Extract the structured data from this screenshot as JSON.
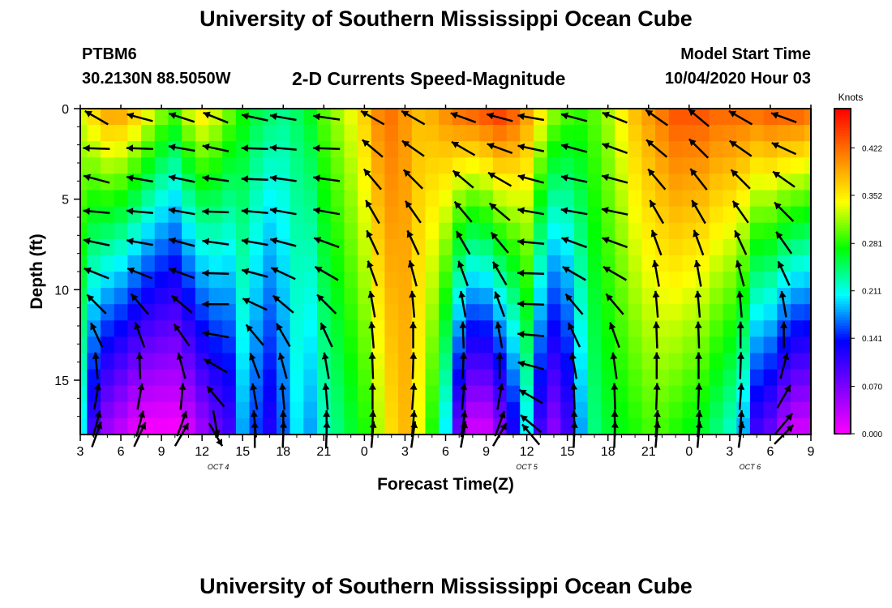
{
  "header": {
    "title": "University of Southern Mississippi Ocean Cube",
    "station": "PTBM6",
    "coords": "30.2130N 88.5050W",
    "subtitle": "2-D Currents Speed-Magnitude",
    "model_start_label": "Model Start Time",
    "model_start_value": "10/04/2020 Hour 03"
  },
  "footer": {
    "title": "University of Southern Mississippi Ocean Cube"
  },
  "chart_data": {
    "type": "heatmap",
    "xlabel": "Forecast Time(Z)",
    "ylabel": "Depth (ft)",
    "x_tick_labels": [
      "3",
      "6",
      "9",
      "12",
      "15",
      "18",
      "21",
      "0",
      "3",
      "6",
      "9",
      "12",
      "15",
      "18",
      "21",
      "0",
      "3",
      "6",
      "9"
    ],
    "x_hours": [
      0,
      3,
      6,
      9,
      12,
      15,
      18,
      21,
      24,
      27,
      30,
      33,
      36,
      39,
      42,
      45,
      48,
      51,
      54
    ],
    "date_labels": [
      {
        "label": "OCT 4",
        "hour": 10.2
      },
      {
        "label": "OCT 5",
        "hour": 33
      },
      {
        "label": "OCT 6",
        "hour": 49.5
      }
    ],
    "y_ticks": [
      0,
      5,
      10,
      15
    ],
    "ylim": [
      0,
      18
    ],
    "xlim_hours": [
      0,
      54
    ],
    "colorbar": {
      "title": "Knots",
      "ticks": [
        0.0,
        0.07,
        0.141,
        0.211,
        0.281,
        0.352,
        0.422
      ],
      "tick_labels": [
        "0.000",
        "0.070",
        "0.141",
        "0.211",
        "0.281",
        "0.352",
        "0.422"
      ],
      "range": [
        0,
        0.48
      ],
      "colors": [
        "#ff00ff",
        "#8000ff",
        "#0000ff",
        "#00ffff",
        "#00ff00",
        "#ffff00",
        "#ff8000",
        "#ff0000"
      ]
    },
    "times": [
      0,
      1,
      2,
      3,
      4,
      5,
      6,
      7,
      8,
      9,
      10,
      11,
      12,
      13,
      14,
      15,
      16,
      17,
      18,
      19,
      20,
      21,
      22,
      23,
      24,
      25,
      26,
      27,
      28,
      29,
      30,
      31,
      32,
      33,
      34,
      35,
      36,
      37,
      38,
      39,
      40,
      41,
      42,
      43,
      44,
      45,
      46,
      47,
      48,
      49,
      50,
      51,
      52,
      53,
      54
    ],
    "surface_speed": [
      0.34,
      0.37,
      0.4,
      0.4,
      0.38,
      0.35,
      0.32,
      0.3,
      0.34,
      0.36,
      0.34,
      0.31,
      0.28,
      0.26,
      0.25,
      0.24,
      0.25,
      0.27,
      0.3,
      0.32,
      0.34,
      0.37,
      0.41,
      0.42,
      0.4,
      0.38,
      0.39,
      0.41,
      0.43,
      0.44,
      0.45,
      0.46,
      0.44,
      0.4,
      0.36,
      0.32,
      0.3,
      0.29,
      0.3,
      0.32,
      0.35,
      0.38,
      0.4,
      0.42,
      0.44,
      0.44,
      0.44,
      0.43,
      0.43,
      0.43,
      0.43,
      0.44,
      0.44,
      0.44,
      0.43
    ],
    "bottom_speed": [
      0.2,
      0.1,
      0.05,
      0.03,
      0.01,
      0.0,
      0.0,
      0.0,
      0.02,
      0.05,
      0.08,
      0.1,
      0.18,
      0.15,
      0.12,
      0.16,
      0.2,
      0.18,
      0.22,
      0.24,
      0.26,
      0.28,
      0.32,
      0.36,
      0.38,
      0.34,
      0.28,
      0.2,
      0.08,
      0.02,
      0.02,
      0.06,
      0.12,
      0.2,
      0.1,
      0.06,
      0.1,
      0.18,
      0.24,
      0.26,
      0.27,
      0.28,
      0.29,
      0.29,
      0.28,
      0.27,
      0.26,
      0.24,
      0.22,
      0.18,
      0.1,
      0.08,
      0.04,
      0.02,
      0.02
    ],
    "arrow_columns": [
      {
        "hour": 1.2,
        "angles": [
          150,
          178,
          165,
          175,
          168,
          158,
          135,
          115,
          95,
          80,
          75,
          70
        ]
      },
      {
        "hour": 4.4,
        "angles": [
          165,
          178,
          170,
          175,
          170,
          158,
          130,
          110,
          92,
          80,
          75,
          65
        ]
      },
      {
        "hour": 7.5,
        "angles": [
          162,
          170,
          168,
          170,
          165,
          160,
          140,
          125,
          105,
          85,
          70,
          60
        ]
      },
      {
        "hour": 10.0,
        "angles": [
          158,
          168,
          172,
          178,
          172,
          178,
          180,
          170,
          150,
          130,
          -80,
          -60
        ]
      },
      {
        "hour": 12.9,
        "angles": [
          168,
          178,
          178,
          175,
          170,
          165,
          155,
          130,
          110,
          100,
          95,
          90
        ]
      },
      {
        "hour": 15.0,
        "angles": [
          170,
          175,
          172,
          170,
          165,
          155,
          140,
          120,
          105,
          95,
          90,
          88
        ]
      },
      {
        "hour": 18.2,
        "angles": [
          172,
          178,
          172,
          170,
          160,
          150,
          135,
          115,
          100,
          95,
          90,
          88
        ]
      },
      {
        "hour": 21.6,
        "angles": [
          150,
          140,
          130,
          120,
          115,
          110,
          100,
          95,
          92,
          90,
          88,
          85
        ]
      },
      {
        "hour": 24.6,
        "angles": [
          150,
          145,
          135,
          125,
          115,
          105,
          95,
          90,
          88,
          86,
          85,
          82
        ]
      },
      {
        "hour": 28.3,
        "angles": [
          160,
          150,
          140,
          130,
          120,
          110,
          100,
          92,
          88,
          85,
          82,
          80
        ]
      },
      {
        "hour": 31.0,
        "angles": [
          165,
          160,
          150,
          140,
          130,
          120,
          110,
          100,
          90,
          80,
          70,
          60
        ]
      },
      {
        "hour": 33.3,
        "angles": [
          170,
          168,
          165,
          170,
          175,
          178,
          178,
          175,
          165,
          150,
          140,
          130
        ]
      },
      {
        "hour": 36.5,
        "angles": [
          165,
          165,
          168,
          170,
          160,
          150,
          130,
          115,
          100,
          92,
          90,
          88
        ]
      },
      {
        "hour": 39.5,
        "angles": [
          158,
          160,
          165,
          168,
          160,
          150,
          130,
          110,
          98,
          92,
          90,
          88
        ]
      },
      {
        "hour": 42.6,
        "angles": [
          145,
          140,
          130,
          120,
          110,
          100,
          95,
          92,
          90,
          88,
          86,
          85
        ]
      },
      {
        "hour": 45.7,
        "angles": [
          140,
          135,
          128,
          120,
          110,
          100,
          95,
          92,
          90,
          88,
          86,
          85
        ]
      },
      {
        "hour": 48.8,
        "angles": [
          150,
          145,
          135,
          125,
          115,
          105,
          95,
          90,
          88,
          86,
          85,
          82
        ]
      },
      {
        "hour": 52.0,
        "angles": [
          160,
          155,
          145,
          135,
          125,
          115,
          100,
          90,
          75,
          60,
          50,
          45
        ]
      }
    ],
    "arrow_depths": [
      0.5,
      2.2,
      3.9,
      5.7,
      7.4,
      9.1,
      10.8,
      12.5,
      14.2,
      15.9,
      17.4,
      18.0
    ]
  }
}
